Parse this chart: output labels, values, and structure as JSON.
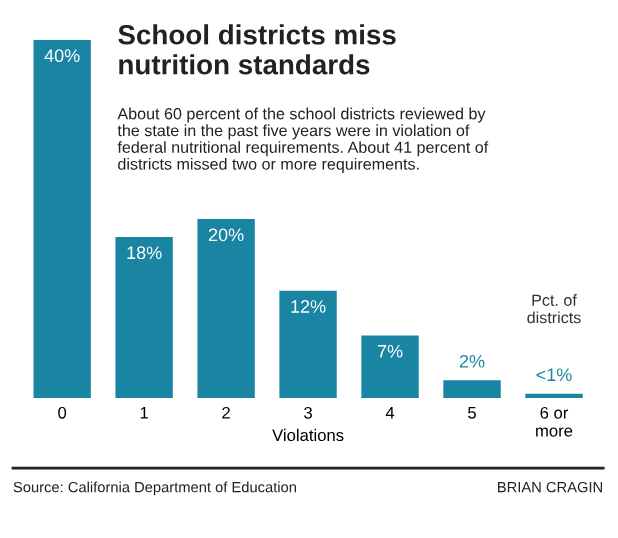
{
  "chart_data": {
    "type": "bar",
    "title": "School districts miss\nnutrition standards",
    "subtitle": "About 60 percent of the school districts reviewed by\nthe state in the past five years were in violation of\nfederal nutritional requirements. About 41 percent of\ndistricts missed two or more requirements.",
    "xlabel": "Violations",
    "categories": [
      "0",
      "1",
      "2",
      "3",
      "4",
      "5",
      "6 or\nmore"
    ],
    "values": [
      40,
      18,
      20,
      12,
      7,
      2,
      0.5
    ],
    "value_labels": [
      "40%",
      "18%",
      "20%",
      "12%",
      "7%",
      "2%",
      "<1%"
    ],
    "color": "#1a85a3",
    "tick_labels": "x",
    "annotations": [
      "Pct. of\ndistricts",
      "Source: California Department of Education",
      "BRIAN CRAGIN"
    ]
  }
}
